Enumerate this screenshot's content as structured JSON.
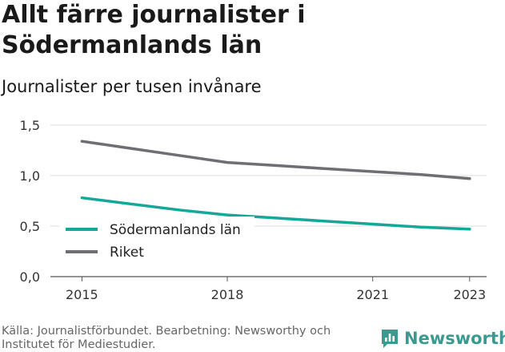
{
  "header": {
    "title": "Allt färre journalister i Södermanlands län",
    "subtitle": "Journalister per tusen invånare"
  },
  "footer": {
    "source": "Källa: Journalistförbundet. Bearbetning: Newsworthy och Institutet för Mediestudier.",
    "brand": "Newsworthy",
    "brand_color": "#3a9a8f",
    "brand_icon": "bar-chart-icon"
  },
  "chart_data": {
    "type": "line",
    "x": [
      2015,
      2016,
      2017,
      2018,
      2019,
      2020,
      2021,
      2022,
      2023
    ],
    "x_ticks": [
      "2015",
      "2018",
      "2021",
      "2023"
    ],
    "y_ticks": [
      "0,0",
      "0,5",
      "1,0",
      "1,5"
    ],
    "ylim": [
      0,
      1.5
    ],
    "grid": true,
    "legend_position": "bottom-left",
    "series": [
      {
        "name": "Södermanlands län",
        "color": "#13a898",
        "values": [
          0.78,
          0.72,
          0.66,
          0.61,
          0.58,
          0.55,
          0.52,
          0.49,
          0.47
        ]
      },
      {
        "name": "Riket",
        "color": "#6e6e73",
        "values": [
          1.34,
          1.27,
          1.2,
          1.13,
          1.1,
          1.07,
          1.04,
          1.01,
          0.97
        ]
      }
    ]
  }
}
